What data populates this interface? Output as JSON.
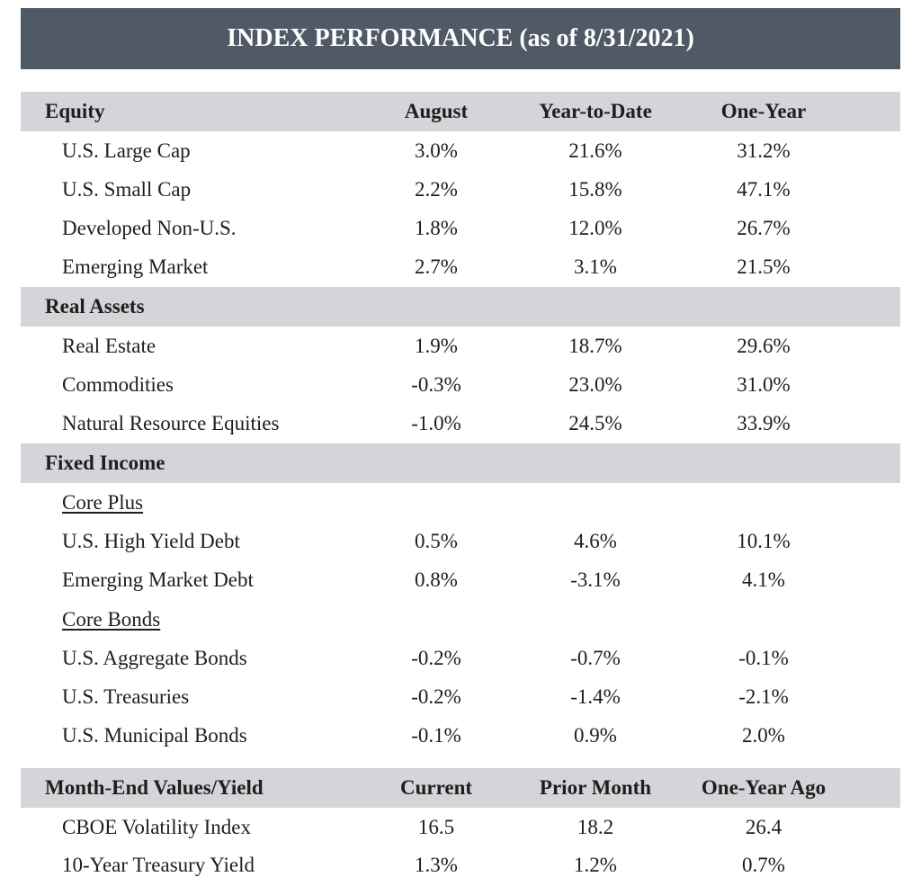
{
  "title": "INDEX PERFORMANCE (as of 8/31/2021)",
  "equity": {
    "header": [
      "Equity",
      "August",
      "Year-to-Date",
      "One-Year"
    ],
    "rows": [
      [
        "U.S. Large Cap",
        "3.0%",
        "21.6%",
        "31.2%"
      ],
      [
        "U.S. Small Cap",
        "2.2%",
        "15.8%",
        "47.1%"
      ],
      [
        "Developed Non-U.S.",
        "1.8%",
        "12.0%",
        "26.7%"
      ],
      [
        "Emerging Market",
        "2.7%",
        "3.1%",
        "21.5%"
      ]
    ]
  },
  "real_assets": {
    "header": "Real Assets",
    "rows": [
      [
        "Real Estate",
        "1.9%",
        "18.7%",
        "29.6%"
      ],
      [
        "Commodities",
        "-0.3%",
        "23.0%",
        "31.0%"
      ],
      [
        "Natural Resource Equities",
        "-1.0%",
        "24.5%",
        "33.9%"
      ]
    ]
  },
  "fixed_income": {
    "header": "Fixed Income",
    "core_plus": {
      "label": "Core Plus",
      "rows": [
        [
          "U.S. High Yield Debt",
          "0.5%",
          "4.6%",
          "10.1%"
        ],
        [
          "Emerging Market Debt",
          "0.8%",
          "-3.1%",
          "4.1%"
        ]
      ]
    },
    "core_bonds": {
      "label": "Core Bonds",
      "rows": [
        [
          "U.S. Aggregate Bonds",
          "-0.2%",
          "-0.7%",
          "-0.1%"
        ],
        [
          "U.S. Treasuries",
          "-0.2%",
          "-1.4%",
          "-2.1%"
        ],
        [
          "U.S. Municipal Bonds",
          "-0.1%",
          "0.9%",
          "2.0%"
        ]
      ]
    }
  },
  "month_end": {
    "header": [
      "Month-End Values/Yield",
      "Current",
      "Prior Month",
      "One-Year Ago"
    ],
    "rows": [
      [
        "CBOE Volatility Index",
        "16.5",
        "18.2",
        "26.4"
      ],
      [
        "10-Year Treasury Yield",
        "1.3%",
        "1.2%",
        "0.7%"
      ]
    ]
  },
  "colors": {
    "title_bg": "#505a66",
    "header_bg": "#d3d5d8",
    "text": "#1e1e1e"
  }
}
